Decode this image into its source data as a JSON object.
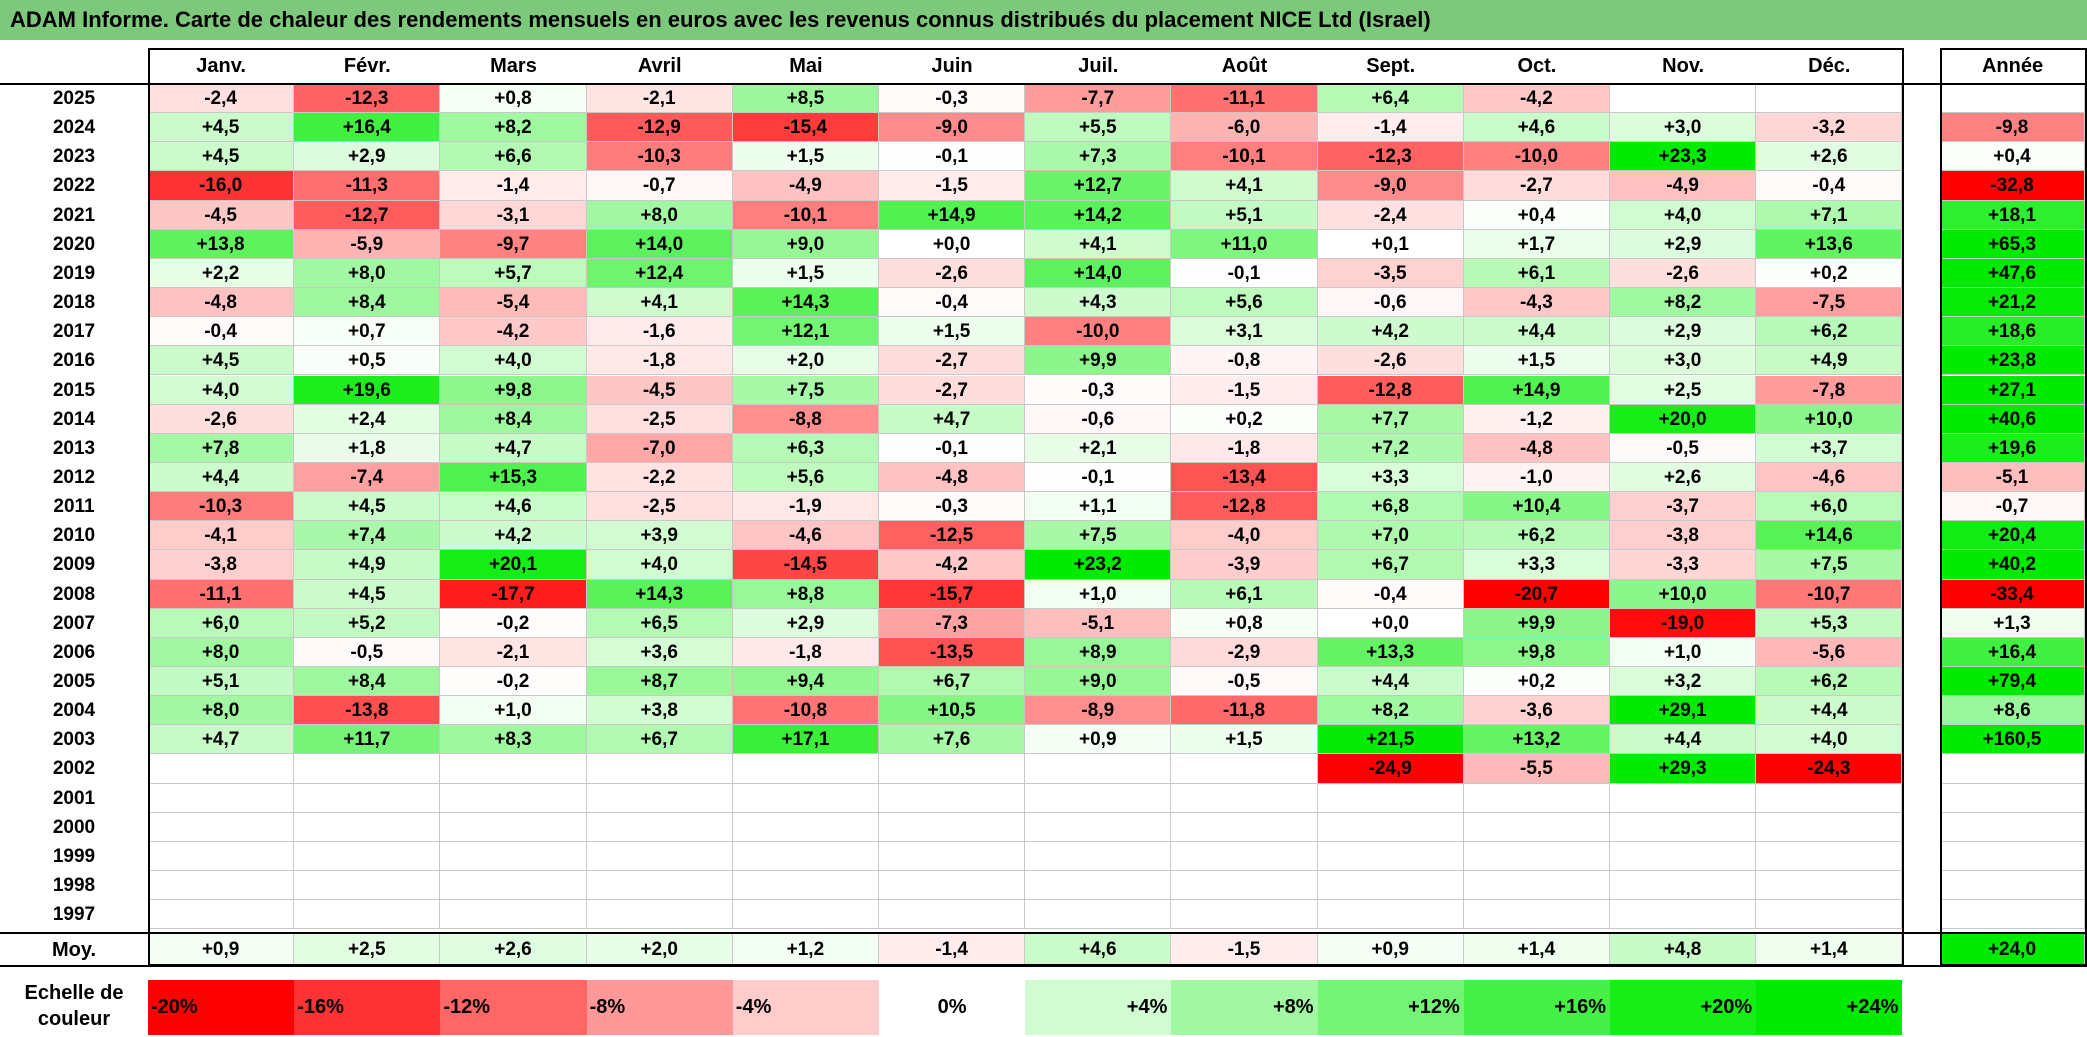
{
  "title": "ADAM Informe. Carte de chaleur des rendements mensuels en euros avec les revenus connus distribués du placement NICE Ltd (Israel)",
  "chart_data": {
    "type": "heatmap",
    "title": "ADAM Informe. Carte de chaleur des rendements mensuels en euros avec les revenus connus distribués du placement NICE Ltd (Israel)",
    "columns": [
      "Janv.",
      "Févr.",
      "Mars",
      "Avril",
      "Mai",
      "Juin",
      "Juil.",
      "Août",
      "Sept.",
      "Oct.",
      "Nov.",
      "Déc."
    ],
    "annual_header": "Année",
    "average_label": "Moy.",
    "rows": [
      {
        "year": "2025",
        "values": [
          "-2,4",
          "-12,3",
          "+0,8",
          "-2,1",
          "+8,5",
          "-0,3",
          "-7,7",
          "-11,1",
          "+6,4",
          "-4,2",
          "",
          ""
        ],
        "annual": ""
      },
      {
        "year": "2024",
        "values": [
          "+4,5",
          "+16,4",
          "+8,2",
          "-12,9",
          "-15,4",
          "-9,0",
          "+5,5",
          "-6,0",
          "-1,4",
          "+4,6",
          "+3,0",
          "-3,2"
        ],
        "annual": "-9,8"
      },
      {
        "year": "2023",
        "values": [
          "+4,5",
          "+2,9",
          "+6,6",
          "-10,3",
          "+1,5",
          "-0,1",
          "+7,3",
          "-10,1",
          "-12,3",
          "-10,0",
          "+23,3",
          "+2,6"
        ],
        "annual": "+0,4"
      },
      {
        "year": "2022",
        "values": [
          "-16,0",
          "-11,3",
          "-1,4",
          "-0,7",
          "-4,9",
          "-1,5",
          "+12,7",
          "+4,1",
          "-9,0",
          "-2,7",
          "-4,9",
          "-0,4"
        ],
        "annual": "-32,8"
      },
      {
        "year": "2021",
        "values": [
          "-4,5",
          "-12,7",
          "-3,1",
          "+8,0",
          "-10,1",
          "+14,9",
          "+14,2",
          "+5,1",
          "-2,4",
          "+0,4",
          "+4,0",
          "+7,1"
        ],
        "annual": "+18,1"
      },
      {
        "year": "2020",
        "values": [
          "+13,8",
          "-5,9",
          "-9,7",
          "+14,0",
          "+9,0",
          "+0,0",
          "+4,1",
          "+11,0",
          "+0,1",
          "+1,7",
          "+2,9",
          "+13,6"
        ],
        "annual": "+65,3"
      },
      {
        "year": "2019",
        "values": [
          "+2,2",
          "+8,0",
          "+5,7",
          "+12,4",
          "+1,5",
          "-2,6",
          "+14,0",
          "-0,1",
          "-3,5",
          "+6,1",
          "-2,6",
          "+0,2"
        ],
        "annual": "+47,6"
      },
      {
        "year": "2018",
        "values": [
          "-4,8",
          "+8,4",
          "-5,4",
          "+4,1",
          "+14,3",
          "-0,4",
          "+4,3",
          "+5,6",
          "-0,6",
          "-4,3",
          "+8,2",
          "-7,5"
        ],
        "annual": "+21,2"
      },
      {
        "year": "2017",
        "values": [
          "-0,4",
          "+0,7",
          "-4,2",
          "-1,6",
          "+12,1",
          "+1,5",
          "-10,0",
          "+3,1",
          "+4,2",
          "+4,4",
          "+2,9",
          "+6,2"
        ],
        "annual": "+18,6"
      },
      {
        "year": "2016",
        "values": [
          "+4,5",
          "+0,5",
          "+4,0",
          "-1,8",
          "+2,0",
          "-2,7",
          "+9,9",
          "-0,8",
          "-2,6",
          "+1,5",
          "+3,0",
          "+4,9"
        ],
        "annual": "+23,8"
      },
      {
        "year": "2015",
        "values": [
          "+4,0",
          "+19,6",
          "+9,8",
          "-4,5",
          "+7,5",
          "-2,7",
          "-0,3",
          "-1,5",
          "-12,8",
          "+14,9",
          "+2,5",
          "-7,8"
        ],
        "annual": "+27,1"
      },
      {
        "year": "2014",
        "values": [
          "-2,6",
          "+2,4",
          "+8,4",
          "-2,5",
          "-8,8",
          "+4,7",
          "-0,6",
          "+0,2",
          "+7,7",
          "-1,2",
          "+20,0",
          "+10,0"
        ],
        "annual": "+40,6"
      },
      {
        "year": "2013",
        "values": [
          "+7,8",
          "+1,8",
          "+4,7",
          "-7,0",
          "+6,3",
          "-0,1",
          "+2,1",
          "-1,8",
          "+7,2",
          "-4,8",
          "-0,5",
          "+3,7"
        ],
        "annual": "+19,6"
      },
      {
        "year": "2012",
        "values": [
          "+4,4",
          "-7,4",
          "+15,3",
          "-2,2",
          "+5,6",
          "-4,8",
          "-0,1",
          "-13,4",
          "+3,3",
          "-1,0",
          "+2,6",
          "-4,6"
        ],
        "annual": "-5,1"
      },
      {
        "year": "2011",
        "values": [
          "-10,3",
          "+4,5",
          "+4,6",
          "-2,5",
          "-1,9",
          "-0,3",
          "+1,1",
          "-12,8",
          "+6,8",
          "+10,4",
          "-3,7",
          "+6,0"
        ],
        "annual": "-0,7"
      },
      {
        "year": "2010",
        "values": [
          "-4,1",
          "+7,4",
          "+4,2",
          "+3,9",
          "-4,6",
          "-12,5",
          "+7,5",
          "-4,0",
          "+7,0",
          "+6,2",
          "-3,8",
          "+14,6"
        ],
        "annual": "+20,4"
      },
      {
        "year": "2009",
        "values": [
          "-3,8",
          "+4,9",
          "+20,1",
          "+4,0",
          "-14,5",
          "-4,2",
          "+23,2",
          "-3,9",
          "+6,7",
          "+3,3",
          "-3,3",
          "+7,5"
        ],
        "annual": "+40,2"
      },
      {
        "year": "2008",
        "values": [
          "-11,1",
          "+4,5",
          "-17,7",
          "+14,3",
          "+8,8",
          "-15,7",
          "+1,0",
          "+6,1",
          "-0,4",
          "-20,7",
          "+10,0",
          "-10,7"
        ],
        "annual": "-33,4"
      },
      {
        "year": "2007",
        "values": [
          "+6,0",
          "+5,2",
          "-0,2",
          "+6,5",
          "+2,9",
          "-7,3",
          "-5,1",
          "+0,8",
          "+0,0",
          "+9,9",
          "-19,0",
          "+5,3"
        ],
        "annual": "+1,3"
      },
      {
        "year": "2006",
        "values": [
          "+8,0",
          "-0,5",
          "-2,1",
          "+3,6",
          "-1,8",
          "-13,5",
          "+8,9",
          "-2,9",
          "+13,3",
          "+9,8",
          "+1,0",
          "-5,6"
        ],
        "annual": "+16,4"
      },
      {
        "year": "2005",
        "values": [
          "+5,1",
          "+8,4",
          "-0,2",
          "+8,7",
          "+9,4",
          "+6,7",
          "+9,0",
          "-0,5",
          "+4,4",
          "+0,2",
          "+3,2",
          "+6,2"
        ],
        "annual": "+79,4"
      },
      {
        "year": "2004",
        "values": [
          "+8,0",
          "-13,8",
          "+1,0",
          "+3,8",
          "-10,8",
          "+10,5",
          "-8,9",
          "-11,8",
          "+8,2",
          "-3,6",
          "+29,1",
          "+4,4"
        ],
        "annual": "+8,6"
      },
      {
        "year": "2003",
        "values": [
          "+4,7",
          "+11,7",
          "+8,3",
          "+6,7",
          "+17,1",
          "+7,6",
          "+0,9",
          "+1,5",
          "+21,5",
          "+13,2",
          "+4,4",
          "+4,0"
        ],
        "annual": "+160,5"
      },
      {
        "year": "2002",
        "values": [
          "",
          "",
          "",
          "",
          "",
          "",
          "",
          "",
          "-24,9",
          "-5,5",
          "+29,3",
          "-24,3"
        ],
        "annual": ""
      },
      {
        "year": "2001",
        "values": [
          "",
          "",
          "",
          "",
          "",
          "",
          "",
          "",
          "",
          "",
          "",
          ""
        ],
        "annual": ""
      },
      {
        "year": "2000",
        "values": [
          "",
          "",
          "",
          "",
          "",
          "",
          "",
          "",
          "",
          "",
          "",
          ""
        ],
        "annual": ""
      },
      {
        "year": "1999",
        "values": [
          "",
          "",
          "",
          "",
          "",
          "",
          "",
          "",
          "",
          "",
          "",
          ""
        ],
        "annual": ""
      },
      {
        "year": "1998",
        "values": [
          "",
          "",
          "",
          "",
          "",
          "",
          "",
          "",
          "",
          "",
          "",
          ""
        ],
        "annual": ""
      },
      {
        "year": "1997",
        "values": [
          "",
          "",
          "",
          "",
          "",
          "",
          "",
          "",
          "",
          "",
          "",
          ""
        ],
        "annual": ""
      }
    ],
    "averages": [
      "+0,9",
      "+2,5",
      "+2,6",
      "+2,0",
      "+1,2",
      "-1,4",
      "+4,6",
      "-1,5",
      "+0,9",
      "+1,4",
      "+4,8",
      "+1,4"
    ],
    "average_annual": "+24,0",
    "scale": {
      "label": "Echelle de couleur",
      "steps": [
        "-20%",
        "-16%",
        "-12%",
        "-8%",
        "-4%",
        "0%",
        "+4%",
        "+8%",
        "+12%",
        "+16%",
        "+20%",
        "+24%"
      ],
      "step_values": [
        -20,
        -16,
        -12,
        -8,
        -4,
        0,
        4,
        8,
        12,
        16,
        20,
        24
      ]
    },
    "colors": {
      "negative_max": "#ff0000",
      "neutral": "#ffffff",
      "positive_max": "#00e600",
      "title_bar": "#7cc97c"
    }
  }
}
